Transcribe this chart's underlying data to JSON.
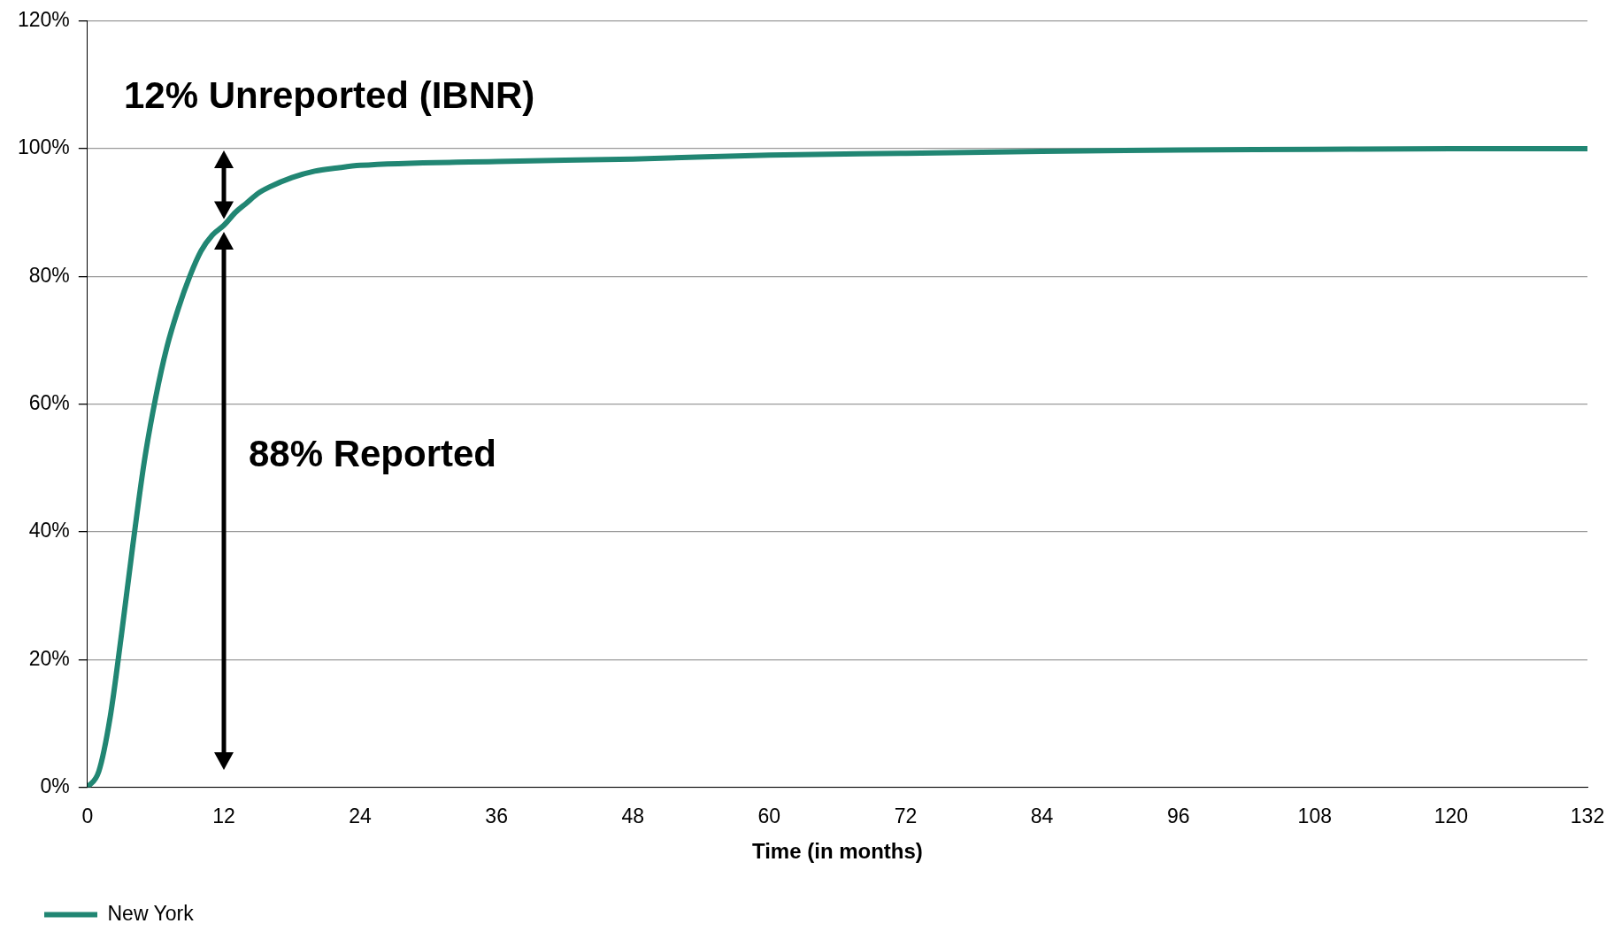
{
  "chart_data": {
    "type": "line",
    "xlabel": "Time (in months)",
    "x": [
      0,
      1,
      2,
      3,
      4,
      5,
      6,
      7,
      8,
      9,
      10,
      11,
      12,
      13,
      14,
      15,
      16,
      18,
      20,
      22,
      24,
      36,
      48,
      60,
      72,
      84,
      96,
      108,
      120,
      132
    ],
    "series": [
      {
        "name": "New York",
        "color": "#218673",
        "values": [
          0,
          2.5,
          11,
          24,
          38,
          51,
          61,
          69,
          75,
          80,
          84,
          86.5,
          88,
          90,
          91.5,
          93,
          94,
          95.5,
          96.5,
          97,
          97.4,
          98,
          98.4,
          99,
          99.3,
          99.6,
          99.8,
          99.9,
          100,
          100
        ]
      }
    ],
    "xlim": [
      0,
      132
    ],
    "xticks": [
      0,
      12,
      24,
      36,
      48,
      60,
      72,
      84,
      96,
      108,
      120,
      132
    ],
    "ylim": [
      0,
      120
    ],
    "yticks": [
      {
        "value": 0,
        "label": "0%"
      },
      {
        "value": 20,
        "label": "20%"
      },
      {
        "value": 40,
        "label": "40%"
      },
      {
        "value": 60,
        "label": "60%"
      },
      {
        "value": 80,
        "label": "80%"
      },
      {
        "value": 100,
        "label": "100%"
      },
      {
        "value": 120,
        "label": "120%"
      }
    ],
    "annotations": [
      "12% Unreported (IBNR)",
      "88% Reported"
    ],
    "grid": "y",
    "legend": "bottom",
    "marker": "none",
    "line_style": "solid"
  }
}
